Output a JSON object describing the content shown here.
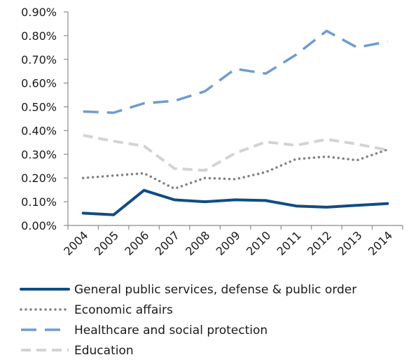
{
  "chart_data": {
    "type": "line",
    "x": [
      "2004",
      "2005",
      "2006",
      "2007",
      "2008",
      "2009",
      "2010",
      "2011",
      "2012",
      "2013",
      "2014"
    ],
    "yticks": [
      "0.00%",
      "0.10%",
      "0.20%",
      "0.30%",
      "0.40%",
      "0.50%",
      "0.60%",
      "0.70%",
      "0.80%",
      "0.90%"
    ],
    "ylim": [
      0,
      0.9
    ],
    "grid": false,
    "legend_position": "bottom",
    "series": [
      {
        "name": "General public services, defense & public order",
        "style": "solid",
        "color": "#0f4c86",
        "values": [
          0.052,
          0.045,
          0.148,
          0.108,
          0.1,
          0.108,
          0.105,
          0.082,
          0.077,
          0.085,
          0.092
        ]
      },
      {
        "name": "Economic affairs",
        "style": "dotted",
        "color": "#808080",
        "values": [
          0.2,
          0.21,
          0.22,
          0.155,
          0.2,
          0.195,
          0.225,
          0.28,
          0.29,
          0.275,
          0.32
        ]
      },
      {
        "name": "Healthcare and social protection",
        "style": "dashed",
        "color": "#6f9bd0",
        "values": [
          0.48,
          0.475,
          0.515,
          0.525,
          0.565,
          0.66,
          0.64,
          0.72,
          0.82,
          0.75,
          0.775
        ]
      },
      {
        "name": "Education",
        "style": "dashed-light",
        "color": "#d3d3d3",
        "values": [
          0.38,
          0.355,
          0.335,
          0.24,
          0.232,
          0.305,
          0.352,
          0.338,
          0.363,
          0.343,
          0.318
        ]
      }
    ]
  }
}
